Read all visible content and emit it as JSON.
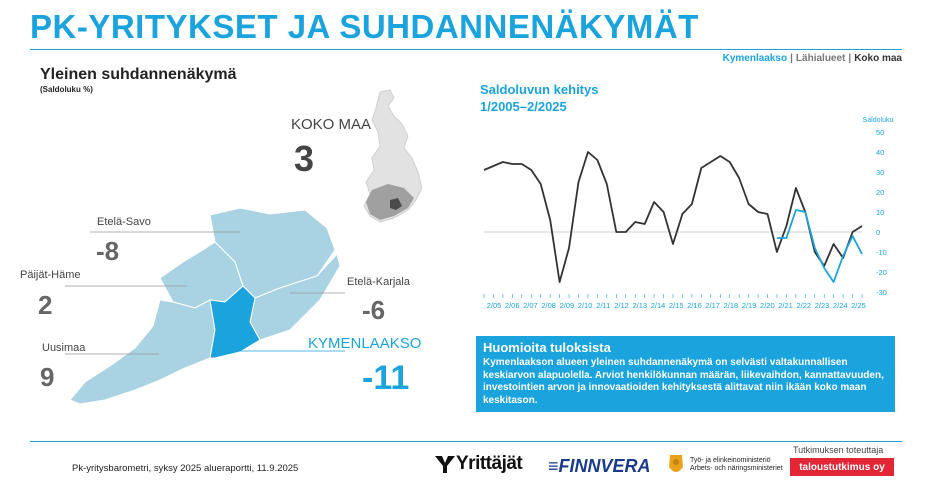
{
  "header": {
    "title": "PK-YRITYKSET JA SUHDANNENÄKYMÄT",
    "nav": {
      "item1": "Kymenlaakso",
      "item2": "Lähialueet",
      "item3": "Koko maa",
      "separator": "|"
    }
  },
  "left": {
    "title": "Yleinen suhdannenäkymä",
    "subtitle": "(Saldoluku %)",
    "koko_maa": {
      "label": "KOKO MAA",
      "value": "3"
    },
    "regions": {
      "etela_savo": {
        "label": "Etelä-Savo",
        "value": "-8"
      },
      "paijat_hame": {
        "label": "Päijät-Häme",
        "value": "2"
      },
      "etela_karjala": {
        "label": "Etelä-Karjala",
        "value": "-6"
      },
      "uusimaa": {
        "label": "Uusimaa",
        "value": "9"
      },
      "kymenlaakso": {
        "label": "KYMENLAAKSO",
        "value": "-11"
      }
    }
  },
  "chart": {
    "title_line1": "Saldoluvun kehitys",
    "title_line2": "1/2005–2/2025"
  },
  "chart_data": {
    "type": "line",
    "title": "Saldoluvun kehitys 1/2005–2/2025",
    "ylabel": "Saldoluku",
    "ylim": [
      -30,
      50
    ],
    "yticks": [
      50,
      40,
      30,
      20,
      10,
      0,
      -10,
      -20,
      -30
    ],
    "x_tick_labels": [
      "2/05",
      "2/06",
      "2/07",
      "2/08",
      "2/09",
      "2/10",
      "2/11",
      "2/12",
      "2/13",
      "2/14",
      "2/15",
      "2/16",
      "2/17",
      "2/18",
      "2/19",
      "2/20",
      "2/21",
      "2/22",
      "2/23",
      "2/24",
      "2/25"
    ],
    "series": [
      {
        "name": "Koko maa",
        "color": "#333333",
        "values": [
          31,
          33,
          35,
          34,
          34,
          31,
          24,
          6,
          -25,
          -8,
          25,
          40,
          36,
          24,
          0,
          0,
          5,
          4,
          15,
          10,
          -6,
          9,
          14,
          32,
          35,
          38,
          35,
          27,
          14,
          10,
          9,
          -10,
          3,
          22,
          10,
          -10,
          -17,
          -6,
          -13,
          0,
          3
        ]
      },
      {
        "name": "Kymenlaakso",
        "color": "#1aa3dc",
        "values": [
          null,
          null,
          null,
          null,
          null,
          null,
          null,
          null,
          null,
          null,
          null,
          null,
          null,
          null,
          null,
          null,
          null,
          null,
          null,
          null,
          null,
          null,
          null,
          null,
          null,
          null,
          null,
          null,
          null,
          null,
          null,
          -3,
          -3,
          11,
          10,
          -8,
          -18,
          -25,
          -12,
          -2,
          -11
        ]
      }
    ]
  },
  "notes": {
    "title": "Huomioita tuloksista",
    "body": "Kymenlaakson alueen yleinen suhdannenäkymä on selvästi valtakunnallisen keskiarvon alapuolella. Arviot henkilökunnan määrän, liikevaihdon, kannattavuuden, investointien arvon ja innovaatioiden kehityksestä alittavat niin ikään koko maan keskitason."
  },
  "footer": {
    "source": "Pk-yritysbarometri, syksy 2025 alueraportti, 11.9.2025",
    "logo_yrittajat": "Yrittäjät",
    "logo_finnvera": "FINNVERA",
    "logo_tem_line1": "Työ- ja elinkeinoministeriö",
    "logo_tem_line2": "Arbets- och näringsministeriet",
    "conducted_by": "Tutkimuksen toteuttaja",
    "conductor": "taloustutkimus oy"
  },
  "colors": {
    "accent": "#1aa3dc",
    "map_region": "#a9d3e3",
    "map_highlight": "#1aa3dc",
    "dark_line": "#333333",
    "badge": "#e32636"
  }
}
